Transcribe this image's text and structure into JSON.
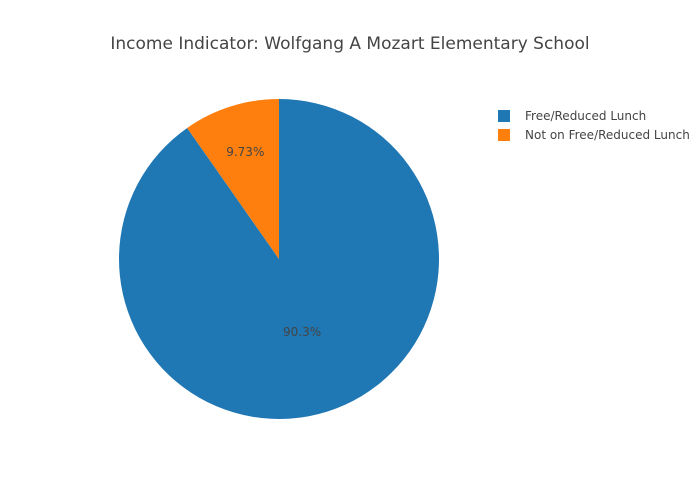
{
  "chart_data": {
    "type": "pie",
    "title": "Income Indicator: Wolfgang A Mozart Elementary School",
    "slices": [
      {
        "label": "Free/Reduced Lunch",
        "value": 90.27,
        "display": "90.3%",
        "color": "#1f77b4"
      },
      {
        "label": "Not on Free/Reduced Lunch",
        "value": 9.73,
        "display": "9.73%",
        "color": "#ff7f0e"
      }
    ],
    "legend_position": "top-right"
  }
}
